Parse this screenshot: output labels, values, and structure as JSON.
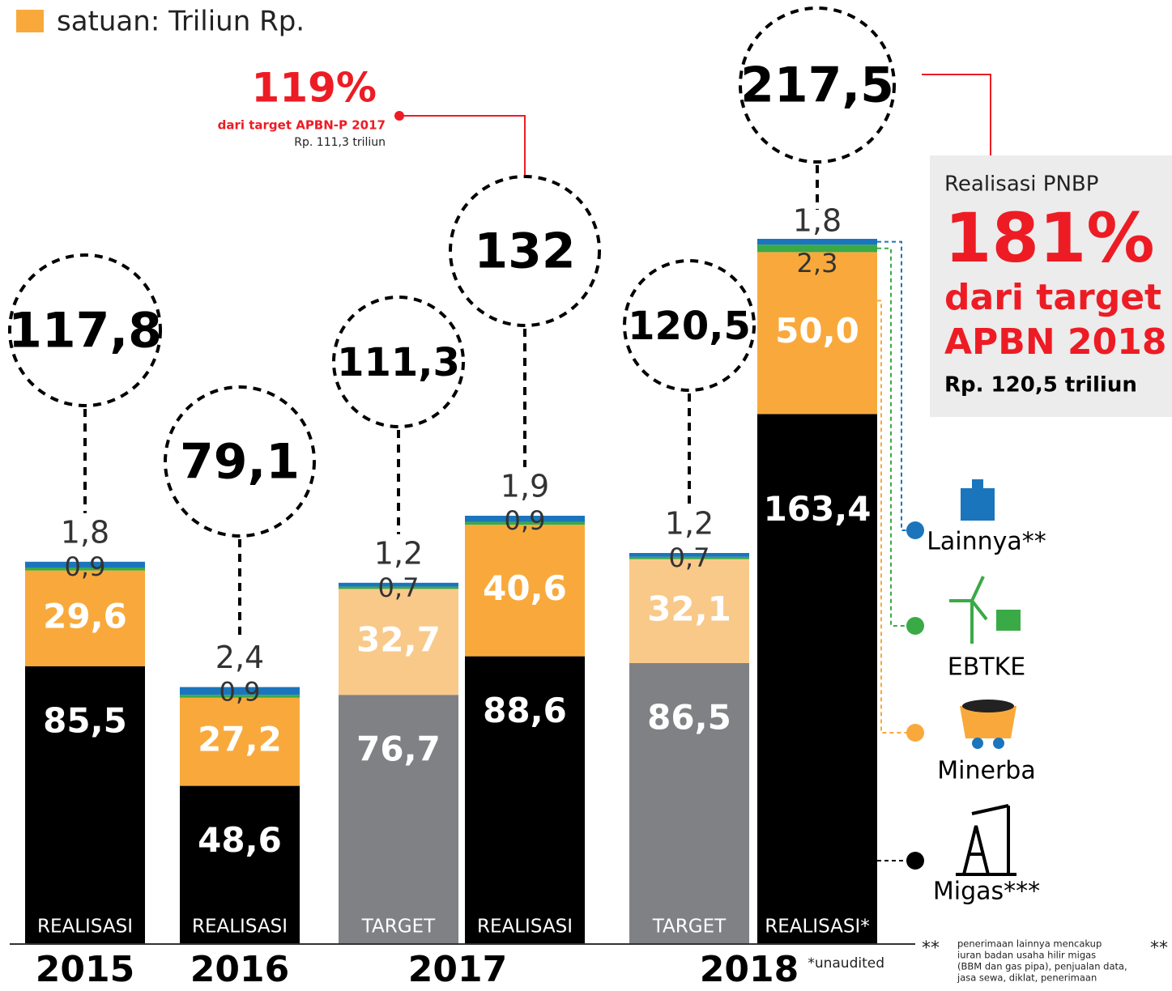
{
  "chart_data": {
    "type": "stacked-bar",
    "unit_note": "satuan: Triliun Rp.",
    "years": [
      "2015",
      "2016",
      "2017",
      "2018"
    ],
    "categories": [
      "REALISASI",
      "REALISASI",
      "TARGET",
      "REALISASI",
      "TARGET",
      "REALISASI*"
    ],
    "target": [
      false,
      false,
      true,
      false,
      true,
      false
    ],
    "totals": [
      117.8,
      79.1,
      111.3,
      132,
      120.5,
      217.5
    ],
    "total_labels": [
      "117,8",
      "79,1",
      "111,3",
      "132",
      "120,5",
      "217,5"
    ],
    "series": [
      {
        "name": "Migas***",
        "color": "#000000",
        "target_color": "#808185",
        "values": [
          85.5,
          48.6,
          76.7,
          88.6,
          86.5,
          163.4
        ],
        "value_labels": [
          "85,5",
          "48,6",
          "76,7",
          "88,6",
          "86,5",
          "163,4"
        ]
      },
      {
        "name": "Minerba",
        "color": "#f9a93b",
        "target_color": "#f9c98a",
        "values": [
          29.6,
          27.2,
          32.7,
          40.6,
          32.1,
          50.0
        ],
        "value_labels": [
          "29,6",
          "27,2",
          "32,7",
          "40,6",
          "32,1",
          "50,0"
        ]
      },
      {
        "name": "EBTKE",
        "color": "#3aaa47",
        "target_color": "#3aaa47",
        "values": [
          0.9,
          0.9,
          0.7,
          0.9,
          0.7,
          2.3
        ],
        "value_labels": [
          "0,9",
          "0,9",
          "0,7",
          "0,9",
          "0,7",
          "2,3"
        ]
      },
      {
        "name": "Lainnya**",
        "color": "#1b75bc",
        "target_color": "#1b75bc",
        "values": [
          1.8,
          2.4,
          1.2,
          1.9,
          1.2,
          1.8
        ],
        "value_labels": [
          "1,8",
          "2,4",
          "1,2",
          "1,9",
          "1,2",
          "1,8"
        ]
      }
    ],
    "annotations": {
      "pct_2017": "119%",
      "pct_2017_text": "dari target APBN-P 2017",
      "pct_2017_sub": "Rp. 111,3 triliun",
      "box_title": "Realisasi PNBP",
      "box_pct": "181%",
      "box_line1": "dari target",
      "box_line2": "APBN 2018",
      "box_sub": "Rp. 120,5 triliun",
      "unaudited": "*unaudited",
      "footnote_mark": "**",
      "footnote": [
        "penerimaan lainnya mencakup",
        "iuran badan usaha hilir migas",
        "(BBM dan gas pipa), penjualan data,",
        "jasa sewa, diklat, penerimaan"
      ],
      "footnote_mark_right": "**"
    }
  }
}
